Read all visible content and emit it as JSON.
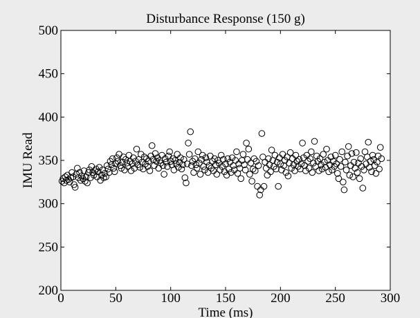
{
  "chart_data": {
    "type": "scatter",
    "title": "Disturbance Response (150 g)",
    "xlabel": "Time (ms)",
    "ylabel": "IMU Read",
    "xlim": [
      0,
      300
    ],
    "ylim": [
      200,
      500
    ],
    "xticks": [
      0,
      50,
      100,
      150,
      200,
      250,
      300
    ],
    "yticks": [
      200,
      250,
      300,
      350,
      400,
      450,
      500
    ],
    "grid": false,
    "marker": "open-circle",
    "colors": {
      "figure_bg": "#ececec",
      "axes_bg": "#ffffff",
      "marker": "#000000"
    },
    "series": [
      {
        "points": [
          [
            1,
            326
          ],
          [
            2,
            329
          ],
          [
            3,
            324
          ],
          [
            4,
            331
          ],
          [
            5,
            327
          ],
          [
            6,
            333
          ],
          [
            7,
            328
          ],
          [
            8,
            325
          ],
          [
            9,
            330
          ],
          [
            10,
            336
          ],
          [
            11,
            331
          ],
          [
            12,
            322
          ],
          [
            13,
            319
          ],
          [
            14,
            334
          ],
          [
            15,
            341
          ],
          [
            16,
            330
          ],
          [
            17,
            336
          ],
          [
            18,
            327
          ],
          [
            19,
            332
          ],
          [
            20,
            329
          ],
          [
            21,
            338
          ],
          [
            22,
            326
          ],
          [
            23,
            331
          ],
          [
            24,
            324
          ],
          [
            25,
            336
          ],
          [
            26,
            339
          ],
          [
            27,
            330
          ],
          [
            28,
            343
          ],
          [
            29,
            336
          ],
          [
            30,
            333
          ],
          [
            31,
            338
          ],
          [
            32,
            340
          ],
          [
            33,
            331
          ],
          [
            34,
            337
          ],
          [
            35,
            342
          ],
          [
            36,
            327
          ],
          [
            37,
            333
          ],
          [
            38,
            339
          ],
          [
            39,
            330
          ],
          [
            40,
            335
          ],
          [
            41,
            331
          ],
          [
            42,
            344
          ],
          [
            43,
            340
          ],
          [
            44,
            336
          ],
          [
            45,
            349
          ],
          [
            46,
            345
          ],
          [
            47,
            352
          ],
          [
            48,
            341
          ],
          [
            49,
            337
          ],
          [
            50,
            346
          ],
          [
            51,
            353
          ],
          [
            52,
            349
          ],
          [
            53,
            357
          ],
          [
            54,
            344
          ],
          [
            55,
            341
          ],
          [
            56,
            348
          ],
          [
            57,
            354
          ],
          [
            58,
            339
          ],
          [
            59,
            351
          ],
          [
            60,
            347
          ],
          [
            61,
            343
          ],
          [
            62,
            356
          ],
          [
            63,
            349
          ],
          [
            64,
            338
          ],
          [
            65,
            346
          ],
          [
            66,
            353
          ],
          [
            67,
            341
          ],
          [
            68,
            349
          ],
          [
            69,
            363
          ],
          [
            70,
            345
          ],
          [
            71,
            351
          ],
          [
            72,
            342
          ],
          [
            73,
            357
          ],
          [
            74,
            348
          ],
          [
            75,
            340
          ],
          [
            76,
            354
          ],
          [
            77,
            346
          ],
          [
            78,
            352
          ],
          [
            79,
            343
          ],
          [
            80,
            349
          ],
          [
            81,
            338
          ],
          [
            82,
            355
          ],
          [
            83,
            367
          ],
          [
            84,
            351
          ],
          [
            85,
            344
          ],
          [
            86,
            358
          ],
          [
            87,
            349
          ],
          [
            88,
            353
          ],
          [
            89,
            341
          ],
          [
            90,
            350
          ],
          [
            91,
            347
          ],
          [
            92,
            356
          ],
          [
            93,
            344
          ],
          [
            94,
            334
          ],
          [
            95,
            352
          ],
          [
            96,
            348
          ],
          [
            97,
            343
          ],
          [
            98,
            355
          ],
          [
            99,
            360
          ],
          [
            100,
            349
          ],
          [
            101,
            345
          ],
          [
            102,
            352
          ],
          [
            103,
            339
          ],
          [
            104,
            350
          ],
          [
            105,
            346
          ],
          [
            106,
            357
          ],
          [
            107,
            342
          ],
          [
            108,
            348
          ],
          [
            109,
            353
          ],
          [
            110,
            340
          ],
          [
            111,
            345
          ],
          [
            112,
            351
          ],
          [
            113,
            330
          ],
          [
            114,
            324
          ],
          [
            115,
            346
          ],
          [
            116,
            370
          ],
          [
            117,
            357
          ],
          [
            118,
            383
          ],
          [
            119,
            344
          ],
          [
            120,
            349
          ],
          [
            121,
            336
          ],
          [
            122,
            352
          ],
          [
            123,
            345
          ],
          [
            124,
            341
          ],
          [
            125,
            360
          ],
          [
            126,
            347
          ],
          [
            127,
            334
          ],
          [
            128,
            351
          ],
          [
            129,
            356
          ],
          [
            130,
            343
          ],
          [
            131,
            339
          ],
          [
            132,
            353
          ],
          [
            133,
            348
          ],
          [
            134,
            336
          ],
          [
            135,
            344
          ],
          [
            136,
            355
          ],
          [
            137,
            341
          ],
          [
            138,
            349
          ],
          [
            139,
            338
          ],
          [
            140,
            352
          ],
          [
            141,
            345
          ],
          [
            142,
            334
          ],
          [
            143,
            350
          ],
          [
            144,
            347
          ],
          [
            145,
            339
          ],
          [
            146,
            356
          ],
          [
            147,
            343
          ],
          [
            148,
            351
          ],
          [
            149,
            337
          ],
          [
            150,
            346
          ],
          [
            151,
            333
          ],
          [
            152,
            352
          ],
          [
            153,
            340
          ],
          [
            154,
            348
          ],
          [
            155,
            336
          ],
          [
            156,
            353
          ],
          [
            157,
            344
          ],
          [
            158,
            339
          ],
          [
            159,
            350
          ],
          [
            160,
            360
          ],
          [
            161,
            335
          ],
          [
            162,
            346
          ],
          [
            163,
            341
          ],
          [
            164,
            329
          ],
          [
            165,
            350
          ],
          [
            166,
            357
          ],
          [
            167,
            345
          ],
          [
            168,
            339
          ],
          [
            169,
            370
          ],
          [
            170,
            351
          ],
          [
            171,
            363
          ],
          [
            172,
            334
          ],
          [
            173,
            347
          ],
          [
            174,
            326
          ],
          [
            175,
            340
          ],
          [
            176,
            352
          ],
          [
            177,
            338
          ],
          [
            178,
            349
          ],
          [
            179,
            320
          ],
          [
            180,
            344
          ],
          [
            181,
            310
          ],
          [
            182,
            316
          ],
          [
            183,
            381
          ],
          [
            184,
            354
          ],
          [
            185,
            320
          ],
          [
            186,
            348
          ],
          [
            187,
            341
          ],
          [
            188,
            333
          ],
          [
            189,
            352
          ],
          [
            190,
            345
          ],
          [
            191,
            337
          ],
          [
            192,
            362
          ],
          [
            193,
            350
          ],
          [
            194,
            343
          ],
          [
            195,
            356
          ],
          [
            196,
            340
          ],
          [
            197,
            348
          ],
          [
            198,
            320
          ],
          [
            199,
            353
          ],
          [
            200,
            346
          ],
          [
            201,
            339
          ],
          [
            202,
            357
          ],
          [
            203,
            344
          ],
          [
            204,
            350
          ],
          [
            205,
            336
          ],
          [
            206,
            354
          ],
          [
            207,
            332
          ],
          [
            208,
            347
          ],
          [
            209,
            359
          ],
          [
            210,
            341
          ],
          [
            211,
            352
          ],
          [
            212,
            345
          ],
          [
            213,
            338
          ],
          [
            214,
            356
          ],
          [
            215,
            349
          ],
          [
            216,
            343
          ],
          [
            217,
            351
          ],
          [
            218,
            340
          ],
          [
            219,
            346
          ],
          [
            220,
            370
          ],
          [
            221,
            353
          ],
          [
            222,
            344
          ],
          [
            223,
            338
          ],
          [
            224,
            356
          ],
          [
            225,
            349
          ],
          [
            226,
            341
          ],
          [
            227,
            352
          ],
          [
            228,
            360
          ],
          [
            229,
            336
          ],
          [
            230,
            347
          ],
          [
            231,
            372
          ],
          [
            232,
            343
          ],
          [
            233,
            355
          ],
          [
            234,
            349
          ],
          [
            235,
            338
          ],
          [
            236,
            352
          ],
          [
            237,
            345
          ],
          [
            238,
            340
          ],
          [
            239,
            357
          ],
          [
            240,
            348
          ],
          [
            241,
            342
          ],
          [
            242,
            363
          ],
          [
            243,
            350
          ],
          [
            244,
            337
          ],
          [
            245,
            345
          ],
          [
            246,
            354
          ],
          [
            247,
            339
          ],
          [
            248,
            349
          ],
          [
            249,
            343
          ],
          [
            250,
            356
          ],
          [
            251,
            346
          ],
          [
            252,
            335
          ],
          [
            253,
            329
          ],
          [
            254,
            351
          ],
          [
            255,
            343
          ],
          [
            256,
            360
          ],
          [
            257,
            325
          ],
          [
            258,
            316
          ],
          [
            259,
            348
          ],
          [
            260,
            339
          ],
          [
            261,
            355
          ],
          [
            262,
            366
          ],
          [
            263,
            333
          ],
          [
            264,
            344
          ],
          [
            265,
            358
          ],
          [
            266,
            331
          ],
          [
            267,
            348
          ],
          [
            268,
            341
          ],
          [
            269,
            359
          ],
          [
            270,
            336
          ],
          [
            271,
            347
          ],
          [
            272,
            329
          ],
          [
            273,
            352
          ],
          [
            274,
            343
          ],
          [
            275,
            318
          ],
          [
            276,
            339
          ],
          [
            277,
            360
          ],
          [
            278,
            346
          ],
          [
            279,
            354
          ],
          [
            280,
            371
          ],
          [
            281,
            342
          ],
          [
            282,
            349
          ],
          [
            283,
            337
          ],
          [
            284,
            356
          ],
          [
            285,
            351
          ],
          [
            286,
            344
          ],
          [
            287,
            335
          ],
          [
            288,
            348
          ],
          [
            289,
            355
          ],
          [
            290,
            340
          ],
          [
            291,
            365
          ],
          [
            292,
            352
          ]
        ]
      }
    ]
  }
}
